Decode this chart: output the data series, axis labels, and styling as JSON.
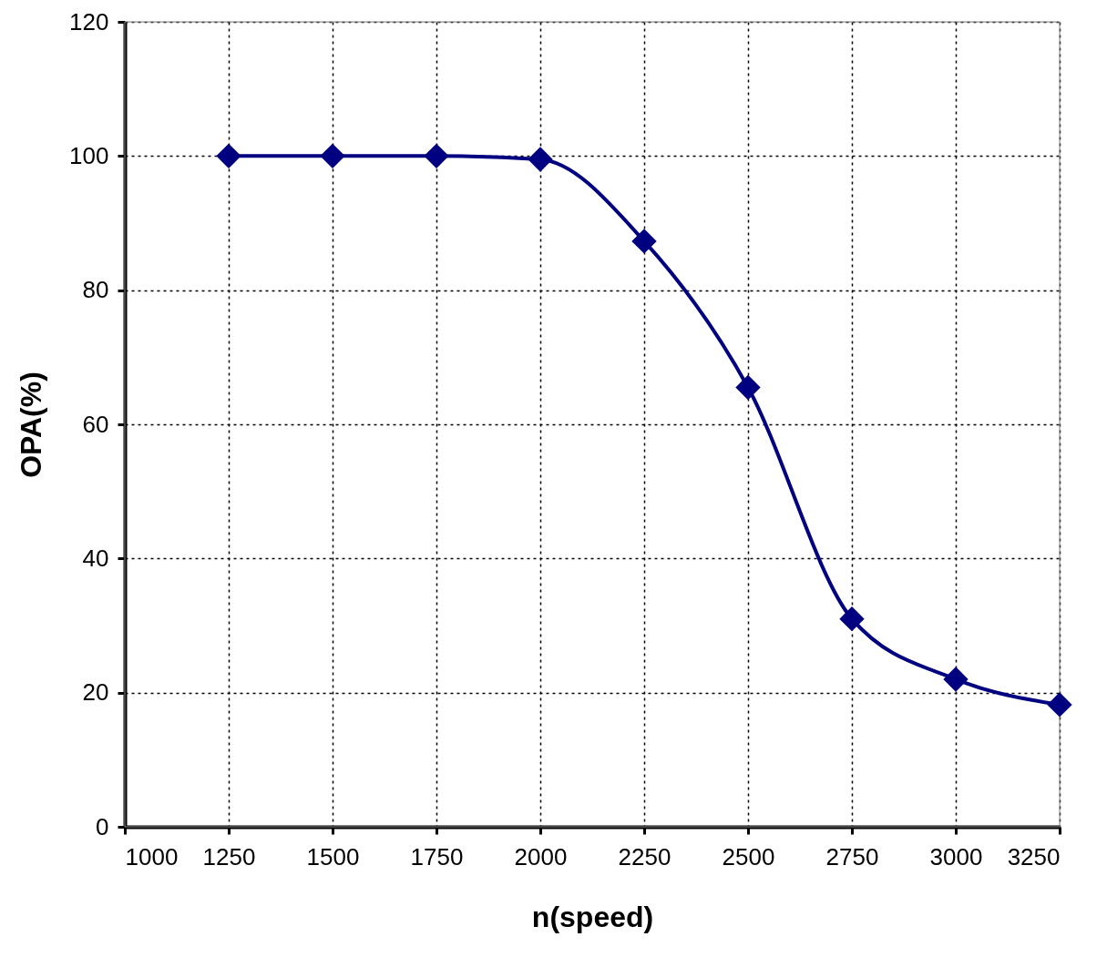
{
  "chart_data": {
    "type": "line",
    "xlabel": "n(speed)",
    "ylabel": "OPA(%)",
    "x": [
      1250,
      1500,
      1750,
      2000,
      2250,
      2500,
      2750,
      3000,
      3250
    ],
    "series": [
      {
        "color": "#000080",
        "values": [
          100,
          100,
          100,
          99.5,
          87.3,
          65.5,
          31,
          22,
          18.2
        ]
      }
    ],
    "xlim": [
      1000,
      3250
    ],
    "xticks": [
      1000,
      1250,
      1500,
      1750,
      2000,
      2250,
      2500,
      2750,
      3000,
      3250
    ],
    "ylim": [
      0,
      120
    ],
    "yticks": [
      0,
      20,
      40,
      60,
      80,
      100,
      120
    ],
    "grid": true,
    "marker": "diamond",
    "line_style": "solid"
  }
}
